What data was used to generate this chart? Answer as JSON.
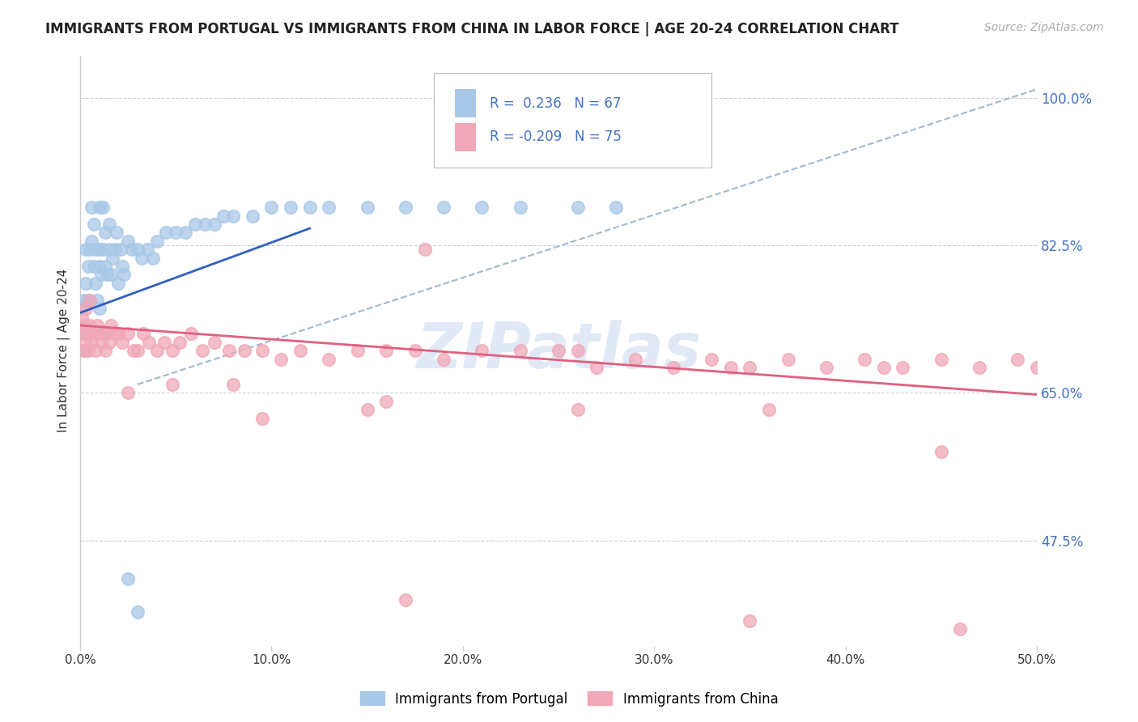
{
  "title": "IMMIGRANTS FROM PORTUGAL VS IMMIGRANTS FROM CHINA IN LABOR FORCE | AGE 20-24 CORRELATION CHART",
  "source": "Source: ZipAtlas.com",
  "ylabel": "In Labor Force | Age 20-24",
  "xlim": [
    0.0,
    0.5
  ],
  "ylim": [
    0.35,
    1.05
  ],
  "yticks": [
    0.475,
    0.65,
    0.825,
    1.0
  ],
  "ytick_labels": [
    "47.5%",
    "65.0%",
    "82.5%",
    "100.0%"
  ],
  "xticks": [
    0.0,
    0.1,
    0.2,
    0.3,
    0.4,
    0.5
  ],
  "xtick_labels": [
    "0.0%",
    "10.0%",
    "20.0%",
    "30.0%",
    "40.0%",
    "50.0%"
  ],
  "r_portugal": 0.236,
  "n_portugal": 67,
  "r_china": -0.209,
  "n_china": 75,
  "legend_labels": [
    "Immigrants from Portugal",
    "Immigrants from China"
  ],
  "color_portugal": "#a8c8e8",
  "color_china": "#f0a8b8",
  "line_color_portugal": "#3060c0",
  "line_color_china": "#e06080",
  "line_color_dashed": "#a0b8d0",
  "background_color": "#ffffff",
  "watermark": "ZIPatlas",
  "tick_color": "#4472c4",
  "pt_line_x": [
    0.0,
    0.12
  ],
  "pt_line_y": [
    0.745,
    0.845
  ],
  "ch_line_x": [
    0.0,
    0.5
  ],
  "ch_line_y": [
    0.73,
    0.648
  ],
  "dash_line_x": [
    0.03,
    0.5
  ],
  "dash_line_y": [
    0.66,
    1.01
  ]
}
